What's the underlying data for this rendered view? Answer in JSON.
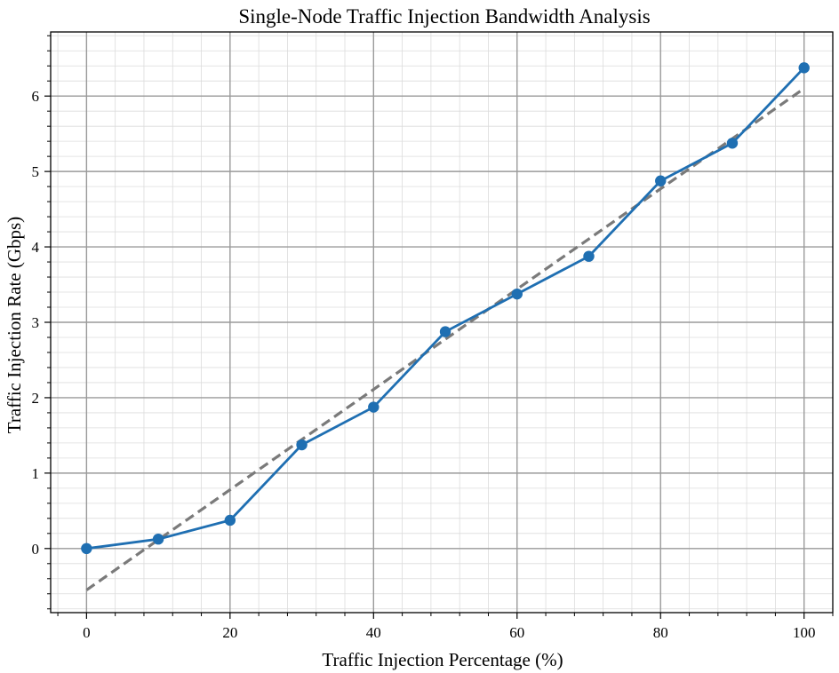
{
  "colors": {
    "series": "#1f6fb2",
    "trend": "#7a7a7a",
    "grid_major": "#9a9a9a",
    "grid_minor": "#dcdcdc",
    "frame": "#000000",
    "background": "#ffffff"
  },
  "chart_data": {
    "type": "line",
    "title": "Single-Node Traffic Injection Bandwidth Analysis",
    "xlabel": "Traffic Injection Percentage (%)",
    "ylabel": "Traffic Injection Rate (Gbps)",
    "xlim": [
      -5,
      104
    ],
    "ylim": [
      -0.85,
      6.85
    ],
    "xticks": [
      0,
      20,
      40,
      60,
      80,
      100
    ],
    "yticks": [
      0,
      1,
      2,
      3,
      4,
      5,
      6
    ],
    "grid": true,
    "minor_grid": true,
    "legend": "none",
    "series": [
      {
        "style": "solid-with-markers",
        "x": [
          0,
          10,
          20,
          30,
          40,
          50,
          60,
          70,
          80,
          90,
          100
        ],
        "y": [
          0.0,
          0.125,
          0.375,
          1.375,
          1.875,
          2.875,
          3.375,
          3.875,
          4.875,
          5.375,
          6.375
        ]
      },
      {
        "style": "dashed-trend",
        "x": [
          0,
          100
        ],
        "y": [
          -0.55,
          6.1
        ]
      }
    ]
  }
}
